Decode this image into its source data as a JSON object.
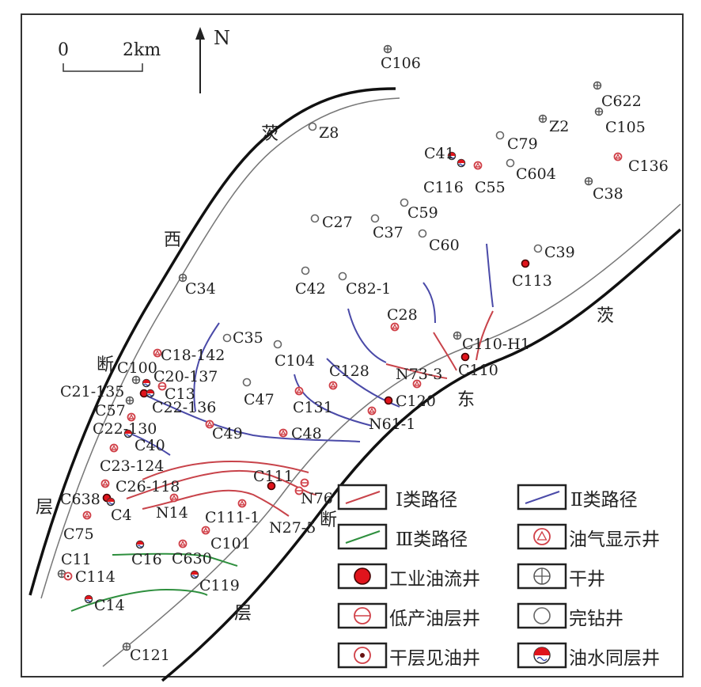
{
  "scale_bar": {
    "start": "0",
    "end": "2km"
  },
  "north_arrow": {
    "label": "N"
  },
  "fault_labels": {
    "west": [
      "茨",
      "西",
      "断",
      "层"
    ],
    "east": [
      "茨",
      "东",
      "断",
      "层"
    ]
  },
  "colors": {
    "class_I": "#c8434a",
    "class_II": "#4a4aa8",
    "class_III": "#2e8f3e",
    "oil_red": "#e0141c",
    "well_red": "#d04048",
    "dry_gray": "#555555"
  },
  "wells": [
    {
      "name": "C106",
      "type": "dry"
    },
    {
      "name": "C622",
      "type": "dry"
    },
    {
      "name": "C105",
      "type": "dry"
    },
    {
      "name": "Z2",
      "type": "dry"
    },
    {
      "name": "Z8",
      "type": "completed"
    },
    {
      "name": "C79",
      "type": "completed"
    },
    {
      "name": "C41",
      "type": "oil-water"
    },
    {
      "name": "C116",
      "type": "oil-water"
    },
    {
      "name": "C55",
      "type": "oil-gas-show"
    },
    {
      "name": "C604",
      "type": "completed"
    },
    {
      "name": "C136",
      "type": "oil-gas-show"
    },
    {
      "name": "C38",
      "type": "dry"
    },
    {
      "name": "C59",
      "type": "completed"
    },
    {
      "name": "C27",
      "type": "completed"
    },
    {
      "name": "C37",
      "type": "completed"
    },
    {
      "name": "C60",
      "type": "completed"
    },
    {
      "name": "C39",
      "type": "completed"
    },
    {
      "name": "C113",
      "type": "industrial"
    },
    {
      "name": "C42",
      "type": "completed"
    },
    {
      "name": "C82-1",
      "type": "completed"
    },
    {
      "name": "C34",
      "type": "dry"
    },
    {
      "name": "C28",
      "type": "oil-gas-show"
    },
    {
      "name": "C35",
      "type": "completed"
    },
    {
      "name": "C110-H1",
      "type": "dry"
    },
    {
      "name": "C110",
      "type": "industrial"
    },
    {
      "name": "C104",
      "type": "completed"
    },
    {
      "name": "C18-142",
      "type": "oil-gas-show"
    },
    {
      "name": "C100",
      "type": "dry"
    },
    {
      "name": "C20-137",
      "type": "oil-water"
    },
    {
      "name": "C13",
      "type": "low-production"
    },
    {
      "name": "C21-135",
      "type": "industrial"
    },
    {
      "name": "C22-136",
      "type": "oil-water"
    },
    {
      "name": "C57",
      "type": "dry"
    },
    {
      "name": "C47",
      "type": "completed"
    },
    {
      "name": "C131",
      "type": "oil-gas-show"
    },
    {
      "name": "C128",
      "type": "oil-gas-show"
    },
    {
      "name": "N73-3",
      "type": "oil-gas-show"
    },
    {
      "name": "C120",
      "type": "industrial"
    },
    {
      "name": "N61-1",
      "type": "oil-gas-show"
    },
    {
      "name": "C49",
      "type": "oil-gas-show"
    },
    {
      "name": "C48",
      "type": "oil-gas-show"
    },
    {
      "name": "C22-130",
      "type": "oil-gas-show"
    },
    {
      "name": "C40",
      "type": "oil-water"
    },
    {
      "name": "C23-124",
      "type": "oil-gas-show"
    },
    {
      "name": "C26-118",
      "type": "oil-gas-show"
    },
    {
      "name": "C638",
      "type": "industrial"
    },
    {
      "name": "C4",
      "type": "oil-water"
    },
    {
      "name": "N14",
      "type": "oil-gas-show"
    },
    {
      "name": "C111",
      "type": "industrial"
    },
    {
      "name": "N76",
      "type": "low-production"
    },
    {
      "name": "N27-5",
      "type": "low-production"
    },
    {
      "name": "C111-1",
      "type": "oil-gas-show"
    },
    {
      "name": "C75",
      "type": "oil-gas-show"
    },
    {
      "name": "C101",
      "type": "oil-gas-show"
    },
    {
      "name": "C16",
      "type": "oil-water"
    },
    {
      "name": "C630",
      "type": "oil-gas-show"
    },
    {
      "name": "C11",
      "type": "dry"
    },
    {
      "name": "C114",
      "type": "dry-layer-oil"
    },
    {
      "name": "C119",
      "type": "oil-water"
    },
    {
      "name": "C14",
      "type": "oil-water"
    },
    {
      "name": "C121",
      "type": "dry"
    }
  ],
  "legend": [
    {
      "label": "Ⅰ类路径",
      "symbol": "class-I-path"
    },
    {
      "label": "Ⅱ类路径",
      "symbol": "class-II-path"
    },
    {
      "label": "Ⅲ类路径",
      "symbol": "class-III-path"
    },
    {
      "label": "油气显示井",
      "symbol": "oil-gas-show"
    },
    {
      "label": "工业油流井",
      "symbol": "industrial"
    },
    {
      "label": "干井",
      "symbol": "dry"
    },
    {
      "label": "低产油层井",
      "symbol": "low-production"
    },
    {
      "label": "完钻井",
      "symbol": "completed"
    },
    {
      "label": "干层见油井",
      "symbol": "dry-layer-oil"
    },
    {
      "label": "油水同层井",
      "symbol": "oil-water"
    }
  ]
}
